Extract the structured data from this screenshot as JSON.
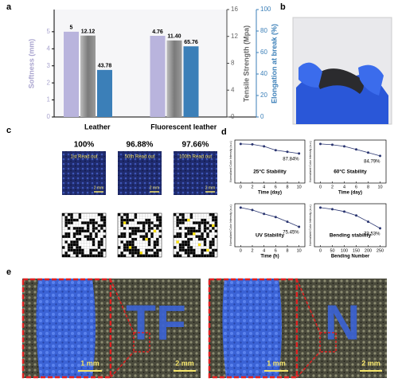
{
  "panels": {
    "a": "a",
    "b": "b",
    "c": "c",
    "d": "d",
    "e": "e"
  },
  "chart_data": [
    {
      "type": "bar",
      "categories": [
        "Leather",
        "Fluorescent leather"
      ],
      "ylabel": "Softness (mm)",
      "y2label": "Tensile Strength (Mpa)",
      "y3label": "Elongation at break (%)",
      "ylim": [
        0,
        6.3
      ],
      "yticks": [
        0,
        1,
        2,
        3,
        4,
        5
      ],
      "y2lim": [
        0,
        16
      ],
      "y2ticks": [
        0,
        4,
        8,
        12,
        16
      ],
      "y3lim": [
        0,
        100
      ],
      "y3ticks": [
        0,
        20,
        40,
        60,
        80,
        100
      ],
      "series": [
        {
          "name": "Softness",
          "color": "#b9b4dd",
          "values": [
            5,
            4.76
          ]
        },
        {
          "name": "Tensile Strength",
          "color": "#8a8a8a",
          "axis": "y2",
          "values": [
            12.12,
            11.4
          ],
          "value_labels": [
            "12.12",
            "11.40"
          ]
        },
        {
          "name": "Elongation at break",
          "color": "#3b7fb8",
          "axis": "y3",
          "values": [
            43.78,
            65.76
          ]
        }
      ]
    },
    {
      "type": "line",
      "annotation": "25°C Stability",
      "end_label": "87.84%",
      "xlabel": "Time (day)",
      "ylabel": "Normalized Color Intensity (a.u.)",
      "x": [
        0,
        2,
        4,
        6,
        8,
        10
      ],
      "values": [
        100,
        99.5,
        97,
        92,
        90,
        87.84
      ],
      "xlim": [
        -1,
        11
      ],
      "xticks": [
        0,
        2,
        4,
        6,
        8,
        10
      ],
      "ylim": [
        50,
        105
      ],
      "color": "#2a3570"
    },
    {
      "type": "line",
      "annotation": "60°C Stability",
      "end_label": "84.79%",
      "xlabel": "Time (day)",
      "ylabel": "Normalized Color Intensity (a.u.)",
      "x": [
        0,
        2,
        4,
        6,
        8,
        10
      ],
      "values": [
        100,
        99,
        97,
        93,
        89,
        84.79
      ],
      "xlim": [
        -1,
        11
      ],
      "xticks": [
        0,
        2,
        4,
        6,
        8,
        10
      ],
      "ylim": [
        50,
        105
      ],
      "color": "#2a3570"
    },
    {
      "type": "line",
      "annotation": "UV Stability",
      "end_label": "75.45%",
      "xlabel": "Time (h)",
      "ylabel": "Normalized Color Intensity (a.u.)",
      "x": [
        0,
        2,
        4,
        6,
        8,
        10
      ],
      "values": [
        100,
        97,
        92,
        88,
        82,
        75.45
      ],
      "xlim": [
        -1,
        11
      ],
      "xticks": [
        0,
        2,
        4,
        6,
        8,
        10
      ],
      "ylim": [
        50,
        105
      ],
      "color": "#2a3570"
    },
    {
      "type": "line",
      "annotation": "Bending stability",
      "end_label": "73.53%",
      "xlabel": "Bending Number",
      "ylabel": "Normalized Color Intensity (a.u.)",
      "x": [
        0,
        50,
        100,
        150,
        200,
        250
      ],
      "values": [
        100,
        98,
        95,
        90,
        82,
        73.53
      ],
      "xlim": [
        -25,
        275
      ],
      "xticks": [
        0,
        50,
        100,
        150,
        200,
        250
      ],
      "ylim": [
        50,
        105
      ],
      "color": "#2a3570"
    }
  ],
  "panel_c": {
    "accuracy": [
      "100%",
      "96.88%",
      "97.66%"
    ],
    "readouts": [
      "1st Read out",
      "50th Read out",
      "100th Read out"
    ],
    "scale": "2 mm"
  },
  "panel_e": {
    "letters": [
      "TF",
      "N"
    ],
    "zoom_scale": "1 mm",
    "scale": "2 mm"
  }
}
